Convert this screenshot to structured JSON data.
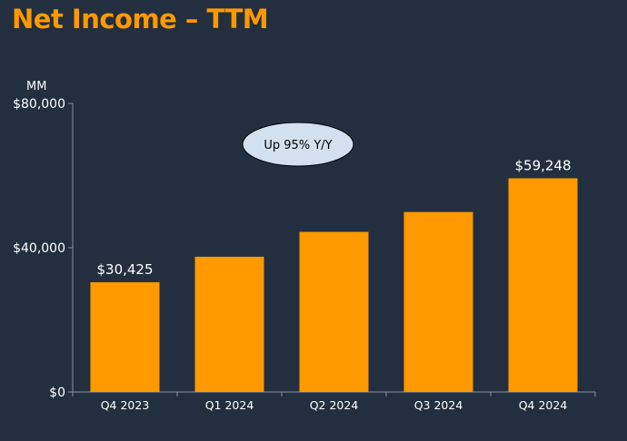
{
  "title": "Net Income – TTM",
  "chart_data": {
    "type": "bar",
    "unit_label": "MM",
    "categories": [
      "Q4 2023",
      "Q1 2024",
      "Q2 2024",
      "Q3 2024",
      "Q4 2024"
    ],
    "values": [
      30425,
      37500,
      44400,
      49900,
      59248
    ],
    "data_labels": [
      "$30,425",
      "",
      "",
      "",
      "$59,248"
    ],
    "ylim": [
      0,
      80000
    ],
    "yticks": [
      0,
      40000,
      80000
    ],
    "ytick_labels": [
      "$0",
      "$40,000",
      "$80,000"
    ],
    "annotation": "Up 95% Y/Y",
    "grid": false,
    "legend": "none",
    "colors": {
      "background": "#232f3e",
      "bar": "#ff9900",
      "title": "#ff9900",
      "text": "#ffffff",
      "axis": "#8a93a0",
      "callout_fill": "#d3e0f0",
      "callout_stroke": "#000000"
    }
  }
}
